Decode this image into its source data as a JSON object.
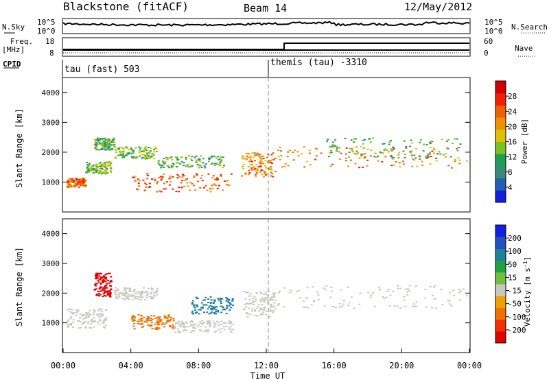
{
  "header": {
    "station": "Blackstone (fitACF)",
    "beam": "Beam 14",
    "date": "12/May/2012"
  },
  "noise_panel": {
    "left_label": "N.Sky",
    "right_label": "N.Search",
    "ticks": [
      "10^5",
      "10^0"
    ]
  },
  "freq_panel": {
    "left_label": "Freq.",
    "left_unit": "[MHz]",
    "left_ticks": [
      "18",
      "8"
    ],
    "right_label": "Nave",
    "right_ticks": [
      "60",
      "0"
    ]
  },
  "cpid": {
    "label": "CPID",
    "modes": [
      {
        "text": "tau (fast) 503",
        "start_hour": 0
      },
      {
        "text": "themis (tau) -3310",
        "start_hour": 12.6
      }
    ]
  },
  "colors": {
    "power": [
      "#1020e0",
      "#2060b0",
      "#3a8a7a",
      "#1aa050",
      "#7cc020",
      "#e0c000",
      "#f09000",
      "#f06000",
      "#f02000",
      "#d00000"
    ],
    "velocity": [
      "#1020e0",
      "#2050c0",
      "#2080a0",
      "#20a040",
      "#70c040",
      "#c8c8c0",
      "#f0a000",
      "#f07000",
      "#f03000",
      "#e00000"
    ]
  },
  "chart_data": [
    {
      "type": "heatmap",
      "name": "power",
      "ylabel": "Slant Range [km]",
      "ylim": [
        0,
        4500
      ],
      "yticks": [
        "1000",
        "2000",
        "3000",
        "4000"
      ],
      "xlim": [
        0,
        24
      ],
      "colorbar": {
        "label": "Power [dB]",
        "ticks": [
          "4",
          "8",
          "12",
          "16",
          "20",
          "24",
          "28"
        ],
        "range": [
          0,
          32
        ]
      },
      "scatter_bands": [
        {
          "t0": 0.2,
          "t1": 1.3,
          "r0": 850,
          "r1": 1150,
          "level": 24
        },
        {
          "t0": 1.3,
          "t1": 2.8,
          "r0": 1300,
          "r1": 1700,
          "level": 14
        },
        {
          "t0": 1.8,
          "t1": 3.0,
          "r0": 2100,
          "r1": 2500,
          "level": 12
        },
        {
          "t0": 3.0,
          "t1": 5.5,
          "r0": 1800,
          "r1": 2200,
          "level": 14
        },
        {
          "t0": 4.0,
          "t1": 10.0,
          "r0": 700,
          "r1": 1300,
          "level": 24
        },
        {
          "t0": 5.5,
          "t1": 9.5,
          "r0": 1500,
          "r1": 1900,
          "level": 12
        },
        {
          "t0": 10.5,
          "t1": 12.5,
          "r0": 1200,
          "r1": 2000,
          "level": 22
        },
        {
          "t0": 12.6,
          "t1": 23.8,
          "r0": 1500,
          "r1": 2200,
          "level": 22
        },
        {
          "t0": 15.5,
          "t1": 23.5,
          "r0": 1800,
          "r1": 2500,
          "level": 12
        }
      ]
    },
    {
      "type": "heatmap",
      "name": "velocity",
      "ylabel": "Slant Range [km]",
      "xlabel": "Time UT",
      "ylim": [
        0,
        4500
      ],
      "yticks": [
        "1000",
        "2000",
        "3000",
        "4000"
      ],
      "xlim": [
        0,
        24
      ],
      "xticks": [
        "00:00",
        "04:00",
        "08:00",
        "12:00",
        "16:00",
        "20:00",
        "00:00"
      ],
      "colorbar": {
        "label": "Velocity [m s",
        "label_sup": "-1",
        "label_end": "]",
        "ticks": [
          "200",
          "100",
          "50",
          "15",
          "-15",
          "-50",
          "-100",
          "-200"
        ]
      },
      "scatter_bands": [
        {
          "t0": 0.2,
          "t1": 2.5,
          "r0": 850,
          "r1": 1500,
          "level": -5
        },
        {
          "t0": 1.8,
          "t1": 2.8,
          "r0": 1900,
          "r1": 2700,
          "level": -200
        },
        {
          "t0": 3.0,
          "t1": 5.5,
          "r0": 1800,
          "r1": 2200,
          "level": 0
        },
        {
          "t0": 4.0,
          "t1": 6.5,
          "r0": 800,
          "r1": 1300,
          "level": -60
        },
        {
          "t0": 6.5,
          "t1": 10.0,
          "r0": 700,
          "r1": 1100,
          "level": 0
        },
        {
          "t0": 7.5,
          "t1": 10.0,
          "r0": 1300,
          "r1": 1900,
          "level": 60
        },
        {
          "t0": 10.5,
          "t1": 12.5,
          "r0": 1200,
          "r1": 2100,
          "level": 5
        },
        {
          "t0": 12.6,
          "t1": 23.8,
          "r0": 1500,
          "r1": 2300,
          "level": 0
        }
      ]
    }
  ]
}
